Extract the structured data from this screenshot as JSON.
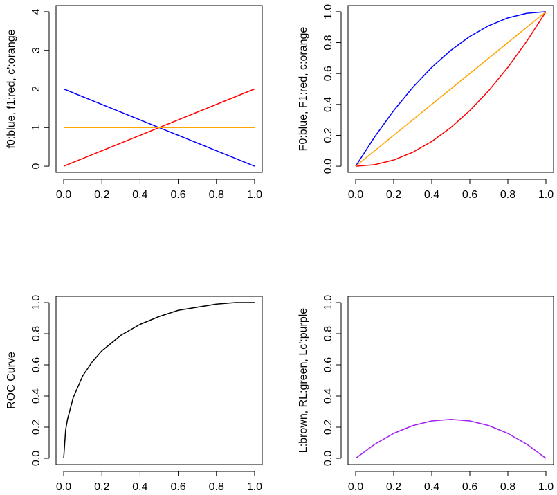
{
  "chart_data": [
    {
      "id": "density",
      "type": "line",
      "ylabel": "f0:blue, f1:red, c':orange",
      "xlim": [
        0,
        1
      ],
      "ylim": [
        0,
        4
      ],
      "x_ticks": [
        0,
        0.2,
        0.4,
        0.6,
        0.8,
        1
      ],
      "y_ticks": [
        0,
        1,
        2,
        3,
        4
      ],
      "series": [
        {
          "color": "#0000ff",
          "x": [
            0,
            1
          ],
          "y": [
            2,
            0
          ]
        },
        {
          "color": "#ff0000",
          "x": [
            0,
            1
          ],
          "y": [
            0,
            2
          ]
        },
        {
          "color": "#ffa500",
          "x": [
            0,
            1
          ],
          "y": [
            1,
            1
          ]
        }
      ]
    },
    {
      "id": "cdf",
      "type": "line",
      "ylabel": "F0:blue, F1:red, c:orange",
      "xlim": [
        0,
        1
      ],
      "ylim": [
        0,
        1
      ],
      "x_ticks": [
        0,
        0.2,
        0.4,
        0.6,
        0.8,
        1
      ],
      "y_ticks": [
        0,
        0.2,
        0.4,
        0.6,
        0.8,
        1
      ],
      "series": [
        {
          "color": "#0000ff",
          "x": [
            0,
            0.1,
            0.2,
            0.3,
            0.4,
            0.5,
            0.6,
            0.7,
            0.8,
            0.9,
            1
          ],
          "y": [
            0,
            0.19,
            0.36,
            0.51,
            0.64,
            0.75,
            0.84,
            0.91,
            0.96,
            0.99,
            1
          ]
        },
        {
          "color": "#ff0000",
          "x": [
            0,
            0.1,
            0.2,
            0.3,
            0.4,
            0.5,
            0.6,
            0.7,
            0.8,
            0.9,
            1
          ],
          "y": [
            0,
            0.01,
            0.04,
            0.09,
            0.16,
            0.25,
            0.36,
            0.49,
            0.64,
            0.81,
            1
          ]
        },
        {
          "color": "#ffa500",
          "x": [
            0,
            1
          ],
          "y": [
            0,
            1
          ]
        }
      ]
    },
    {
      "id": "roc",
      "type": "line",
      "ylabel": "ROC Curve",
      "xlim": [
        0,
        1
      ],
      "ylim": [
        0,
        1
      ],
      "x_ticks": [
        0,
        0.2,
        0.4,
        0.6,
        0.8,
        1
      ],
      "y_ticks": [
        0,
        0.2,
        0.4,
        0.6,
        0.8,
        1
      ],
      "series": [
        {
          "color": "#000000",
          "x": [
            0,
            0.01,
            0.02,
            0.05,
            0.1,
            0.15,
            0.2,
            0.3,
            0.4,
            0.5,
            0.6,
            0.7,
            0.8,
            0.9,
            1
          ],
          "y": [
            0,
            0.18,
            0.25,
            0.39,
            0.53,
            0.62,
            0.69,
            0.79,
            0.86,
            0.91,
            0.95,
            0.97,
            0.99,
            1.0,
            1
          ]
        }
      ]
    },
    {
      "id": "lorenz",
      "type": "line",
      "ylabel": "L:brown, RL:green, Lc':purple",
      "xlim": [
        0,
        1
      ],
      "ylim": [
        0,
        1
      ],
      "x_ticks": [
        0,
        0.2,
        0.4,
        0.6,
        0.8,
        1
      ],
      "y_ticks": [
        0,
        0.2,
        0.4,
        0.6,
        0.8,
        1
      ],
      "series": [
        {
          "color": "#a020f0",
          "x": [
            0,
            0.1,
            0.2,
            0.3,
            0.4,
            0.5,
            0.6,
            0.7,
            0.8,
            0.9,
            1
          ],
          "y": [
            0,
            0.09,
            0.16,
            0.21,
            0.24,
            0.25,
            0.24,
            0.21,
            0.16,
            0.09,
            0
          ]
        }
      ]
    }
  ]
}
